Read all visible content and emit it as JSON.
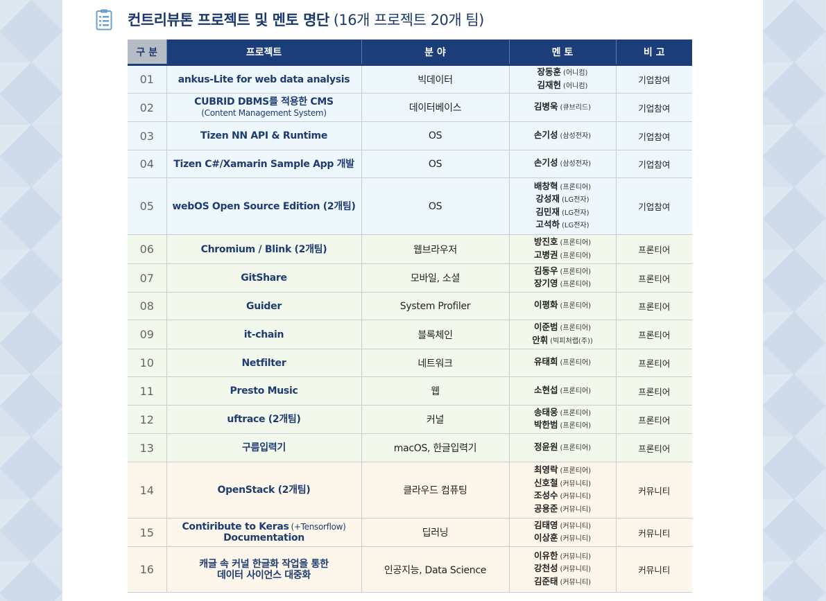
{
  "title": {
    "main": "컨트리뷰톤 프로젝트 및 멘토 명단",
    "sub": "(16개 프로젝트 20개 팀)",
    "icon": "clipboard-icon"
  },
  "table": {
    "headers": [
      "구 분",
      "프로젝트",
      "분 야",
      "멘 토",
      "비 고"
    ],
    "rows": [
      {
        "no": "01",
        "group": "biz",
        "project": [
          "ankus-Lite for web data analysis"
        ],
        "field": "빅데이터",
        "mentors": [
          {
            "name": "장동훈",
            "org": "(어니컴)"
          },
          {
            "name": "김재헌",
            "org": "(어니컴)"
          }
        ],
        "note": "기업참여"
      },
      {
        "no": "02",
        "group": "biz",
        "project": [
          "CUBRID DBMS를 적용한 CMS"
        ],
        "project_sub": "(Content Management System)",
        "field": "데이터베이스",
        "mentors": [
          {
            "name": "김병욱",
            "org": "(큐브리드)"
          }
        ],
        "note": "기업참여"
      },
      {
        "no": "03",
        "group": "biz",
        "project": [
          "Tizen NN API & Runtime"
        ],
        "field": "OS",
        "mentors": [
          {
            "name": "손기성",
            "org": "(삼성전자)"
          }
        ],
        "note": "기업참여"
      },
      {
        "no": "04",
        "group": "biz",
        "project": [
          "Tizen C#/Xamarin Sample App 개발"
        ],
        "field": "OS",
        "mentors": [
          {
            "name": "손기성",
            "org": "(삼성전자)"
          }
        ],
        "note": "기업참여"
      },
      {
        "no": "05",
        "group": "biz",
        "project": [
          "webOS Open Source Edition (2개팀)"
        ],
        "field": "OS",
        "mentors": [
          {
            "name": "배창혁",
            "org": "(프론티어)"
          },
          {
            "name": "강성재",
            "org": "(LG전자)"
          },
          {
            "name": "김민재",
            "org": "(LG전자)"
          },
          {
            "name": "고석하",
            "org": "(LG전자)"
          }
        ],
        "note": "기업참여"
      },
      {
        "no": "06",
        "group": "fr",
        "project": [
          "Chromium / Blink (2개팀)"
        ],
        "field": "웹브라우저",
        "mentors": [
          {
            "name": "방진호",
            "org": "(프론티어)"
          },
          {
            "name": "고병권",
            "org": "(프론티어)"
          }
        ],
        "note": "프론티어"
      },
      {
        "no": "07",
        "group": "fr",
        "project": [
          "GitShare"
        ],
        "field": "모바일, 소셜",
        "mentors": [
          {
            "name": "김동우",
            "org": "(프론티어)"
          },
          {
            "name": "장기영",
            "org": "(프론티어)"
          }
        ],
        "note": "프론티어"
      },
      {
        "no": "08",
        "group": "fr",
        "project": [
          "Guider"
        ],
        "field": "System Profiler",
        "mentors": [
          {
            "name": "이평화",
            "org": "(프론티어)"
          }
        ],
        "note": "프론티어"
      },
      {
        "no": "09",
        "group": "fr",
        "project": [
          "it-chain"
        ],
        "field": "블록체인",
        "mentors": [
          {
            "name": "이준범",
            "org": "(프론티어)"
          },
          {
            "name": "안휘",
            "org": "(빅피처랩(주))"
          }
        ],
        "note": "프론티어"
      },
      {
        "no": "10",
        "group": "fr",
        "project": [
          "Netfilter"
        ],
        "field": "네트워크",
        "mentors": [
          {
            "name": "유태희",
            "org": "(프론티어)"
          }
        ],
        "note": "프론티어"
      },
      {
        "no": "11",
        "group": "fr",
        "project": [
          "Presto Music"
        ],
        "field": "웹",
        "mentors": [
          {
            "name": "소현섭",
            "org": "(프론티어)"
          }
        ],
        "note": "프론티어"
      },
      {
        "no": "12",
        "group": "fr",
        "project": [
          "uftrace (2개팀)"
        ],
        "field": "커널",
        "mentors": [
          {
            "name": "송태웅",
            "org": "(프론티어)"
          },
          {
            "name": "박한범",
            "org": "(프론티어)"
          }
        ],
        "note": "프론티어"
      },
      {
        "no": "13",
        "group": "fr",
        "project": [
          "구름입력기"
        ],
        "field": "macOS, 한글입력기",
        "mentors": [
          {
            "name": "정윤원",
            "org": "(프론티어)"
          }
        ],
        "note": "프론티어"
      },
      {
        "no": "14",
        "group": "co",
        "project": [
          "OpenStack (2개팀)"
        ],
        "field": "클라우드 컴퓨팅",
        "mentors": [
          {
            "name": "최영락",
            "org": "(프론티어)"
          },
          {
            "name": "신호철",
            "org": "(커뮤니티)"
          },
          {
            "name": "조성수",
            "org": "(커뮤니티)"
          },
          {
            "name": "공용준",
            "org": "(커뮤니티)"
          }
        ],
        "note": "커뮤니티"
      },
      {
        "no": "15",
        "group": "co",
        "project": [
          "Contiribute to Keras",
          "Documentation"
        ],
        "project_inline_small": "(+Tensorflow)",
        "field": "딥러닝",
        "mentors": [
          {
            "name": "김태영",
            "org": "(커뮤니티)"
          },
          {
            "name": "이상훈",
            "org": "(커뮤니티)"
          }
        ],
        "note": "커뮤니티"
      },
      {
        "no": "16",
        "group": "co",
        "project": [
          "캐글 속 커널 한글화 작업을 통한",
          "데이터 사이언스 대중화"
        ],
        "field": "인공지능, Data Science",
        "mentors": [
          {
            "name": "이유한",
            "org": "(커뮤니티)"
          },
          {
            "name": "강천성",
            "org": "(커뮤니티)"
          },
          {
            "name": "김준태",
            "org": "(커뮤니티)"
          }
        ],
        "note": "커뮤니티"
      }
    ]
  },
  "colors": {
    "header_bg": "#1b3d7a",
    "title_color": "#1b3a6b",
    "biz_row_bg": "#eef7fc",
    "frontier_row_bg": "#f3f8ec",
    "community_row_bg": "#fdf6ea"
  }
}
